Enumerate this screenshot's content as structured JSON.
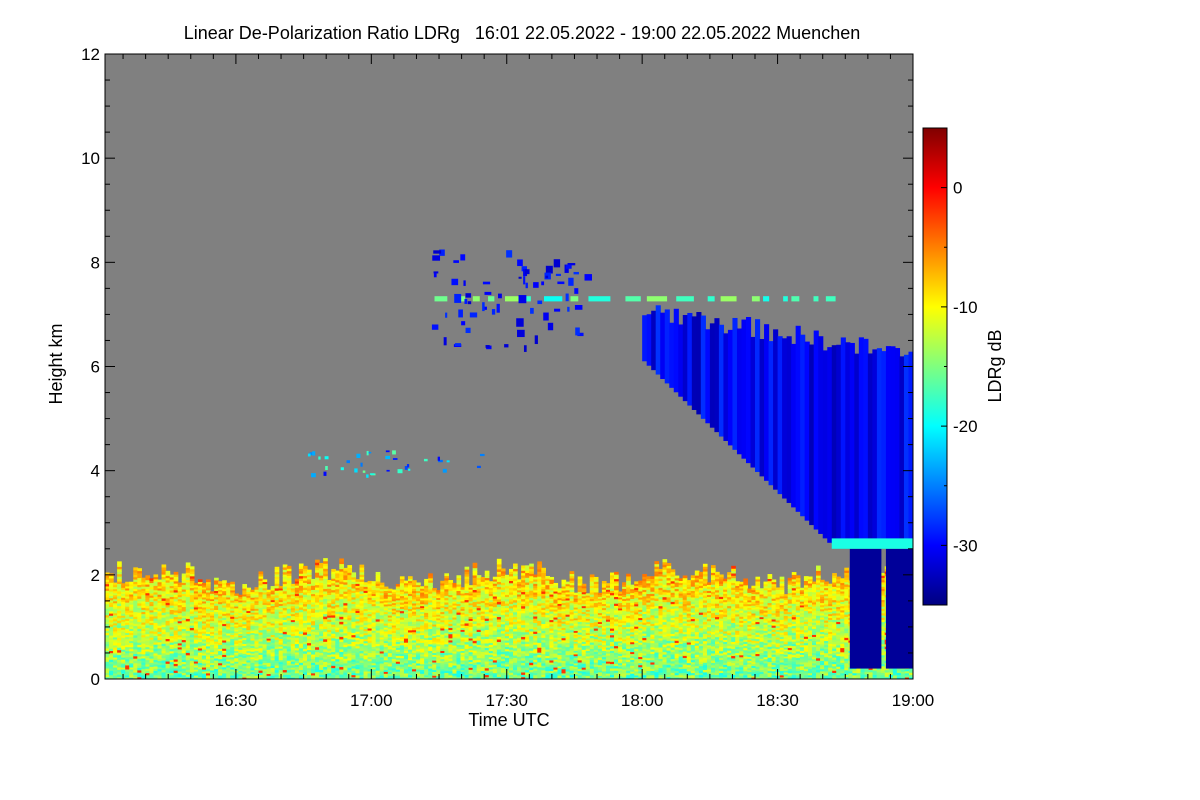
{
  "chart_data": {
    "type": "heatmap",
    "title": "Linear De-Polarization Ratio LDRg   16:01 22.05.2022 - 19:00 22.05.2022 Muenchen",
    "xlabel": "Time UTC",
    "ylabel": "Height km",
    "xlim_minutes_utc": [
      961,
      1140
    ],
    "ylim": [
      0,
      12
    ],
    "x_ticks": [
      {
        "label": "16:30",
        "minutes": 990
      },
      {
        "label": "17:00",
        "minutes": 1020
      },
      {
        "label": "17:30",
        "minutes": 1050
      },
      {
        "label": "18:00",
        "minutes": 1080
      },
      {
        "label": "18:30",
        "minutes": 1110
      },
      {
        "label": "19:00",
        "minutes": 1140
      }
    ],
    "y_ticks": [
      0,
      2,
      4,
      6,
      8,
      10,
      12
    ],
    "background_color": "#808080",
    "colorbar": {
      "label": "LDRg dB",
      "range": [
        -35,
        5
      ],
      "ticks": [
        0,
        -10,
        -20,
        -30
      ],
      "colormap": "jet"
    },
    "features": [
      {
        "name": "boundary layer aerosol",
        "x_range_minutes": [
          961,
          1140
        ],
        "height_range_km": [
          0,
          2.4
        ],
        "ldr_db": [
          -20,
          -8
        ]
      },
      {
        "name": "cirrus cloud",
        "x_range_minutes": [
          1080,
          1140
        ],
        "height_range_km": [
          2.6,
          7.3
        ],
        "ldr_db": [
          -33,
          -28
        ]
      },
      {
        "name": "melting layer",
        "x_range_minutes": [
          1122,
          1140
        ],
        "height_range_km": [
          2.5,
          2.7
        ],
        "ldr_db": [
          -20,
          -18
        ]
      },
      {
        "name": "precipitation",
        "x_range_minutes": [
          1126,
          1140
        ],
        "height_range_km": [
          0,
          2.5
        ],
        "ldr_db": [
          -35,
          -33
        ]
      },
      {
        "name": "thin layer",
        "x_range_minutes": [
          1034,
          1121
        ],
        "height_range_km": [
          7.25,
          7.35
        ],
        "ldr_db": [
          -20,
          -13
        ]
      },
      {
        "name": "upper cloud fragments",
        "x_range_minutes": [
          1033,
          1068
        ],
        "height_range_km": [
          6.4,
          8.4
        ],
        "ldr_db": [
          -32,
          -28
        ]
      },
      {
        "name": "mid-level echoes",
        "x_range_minutes": [
          1005,
          1045
        ],
        "height_range_km": [
          3.9,
          4.4
        ],
        "ldr_db": [
          -30,
          -15
        ]
      }
    ]
  }
}
